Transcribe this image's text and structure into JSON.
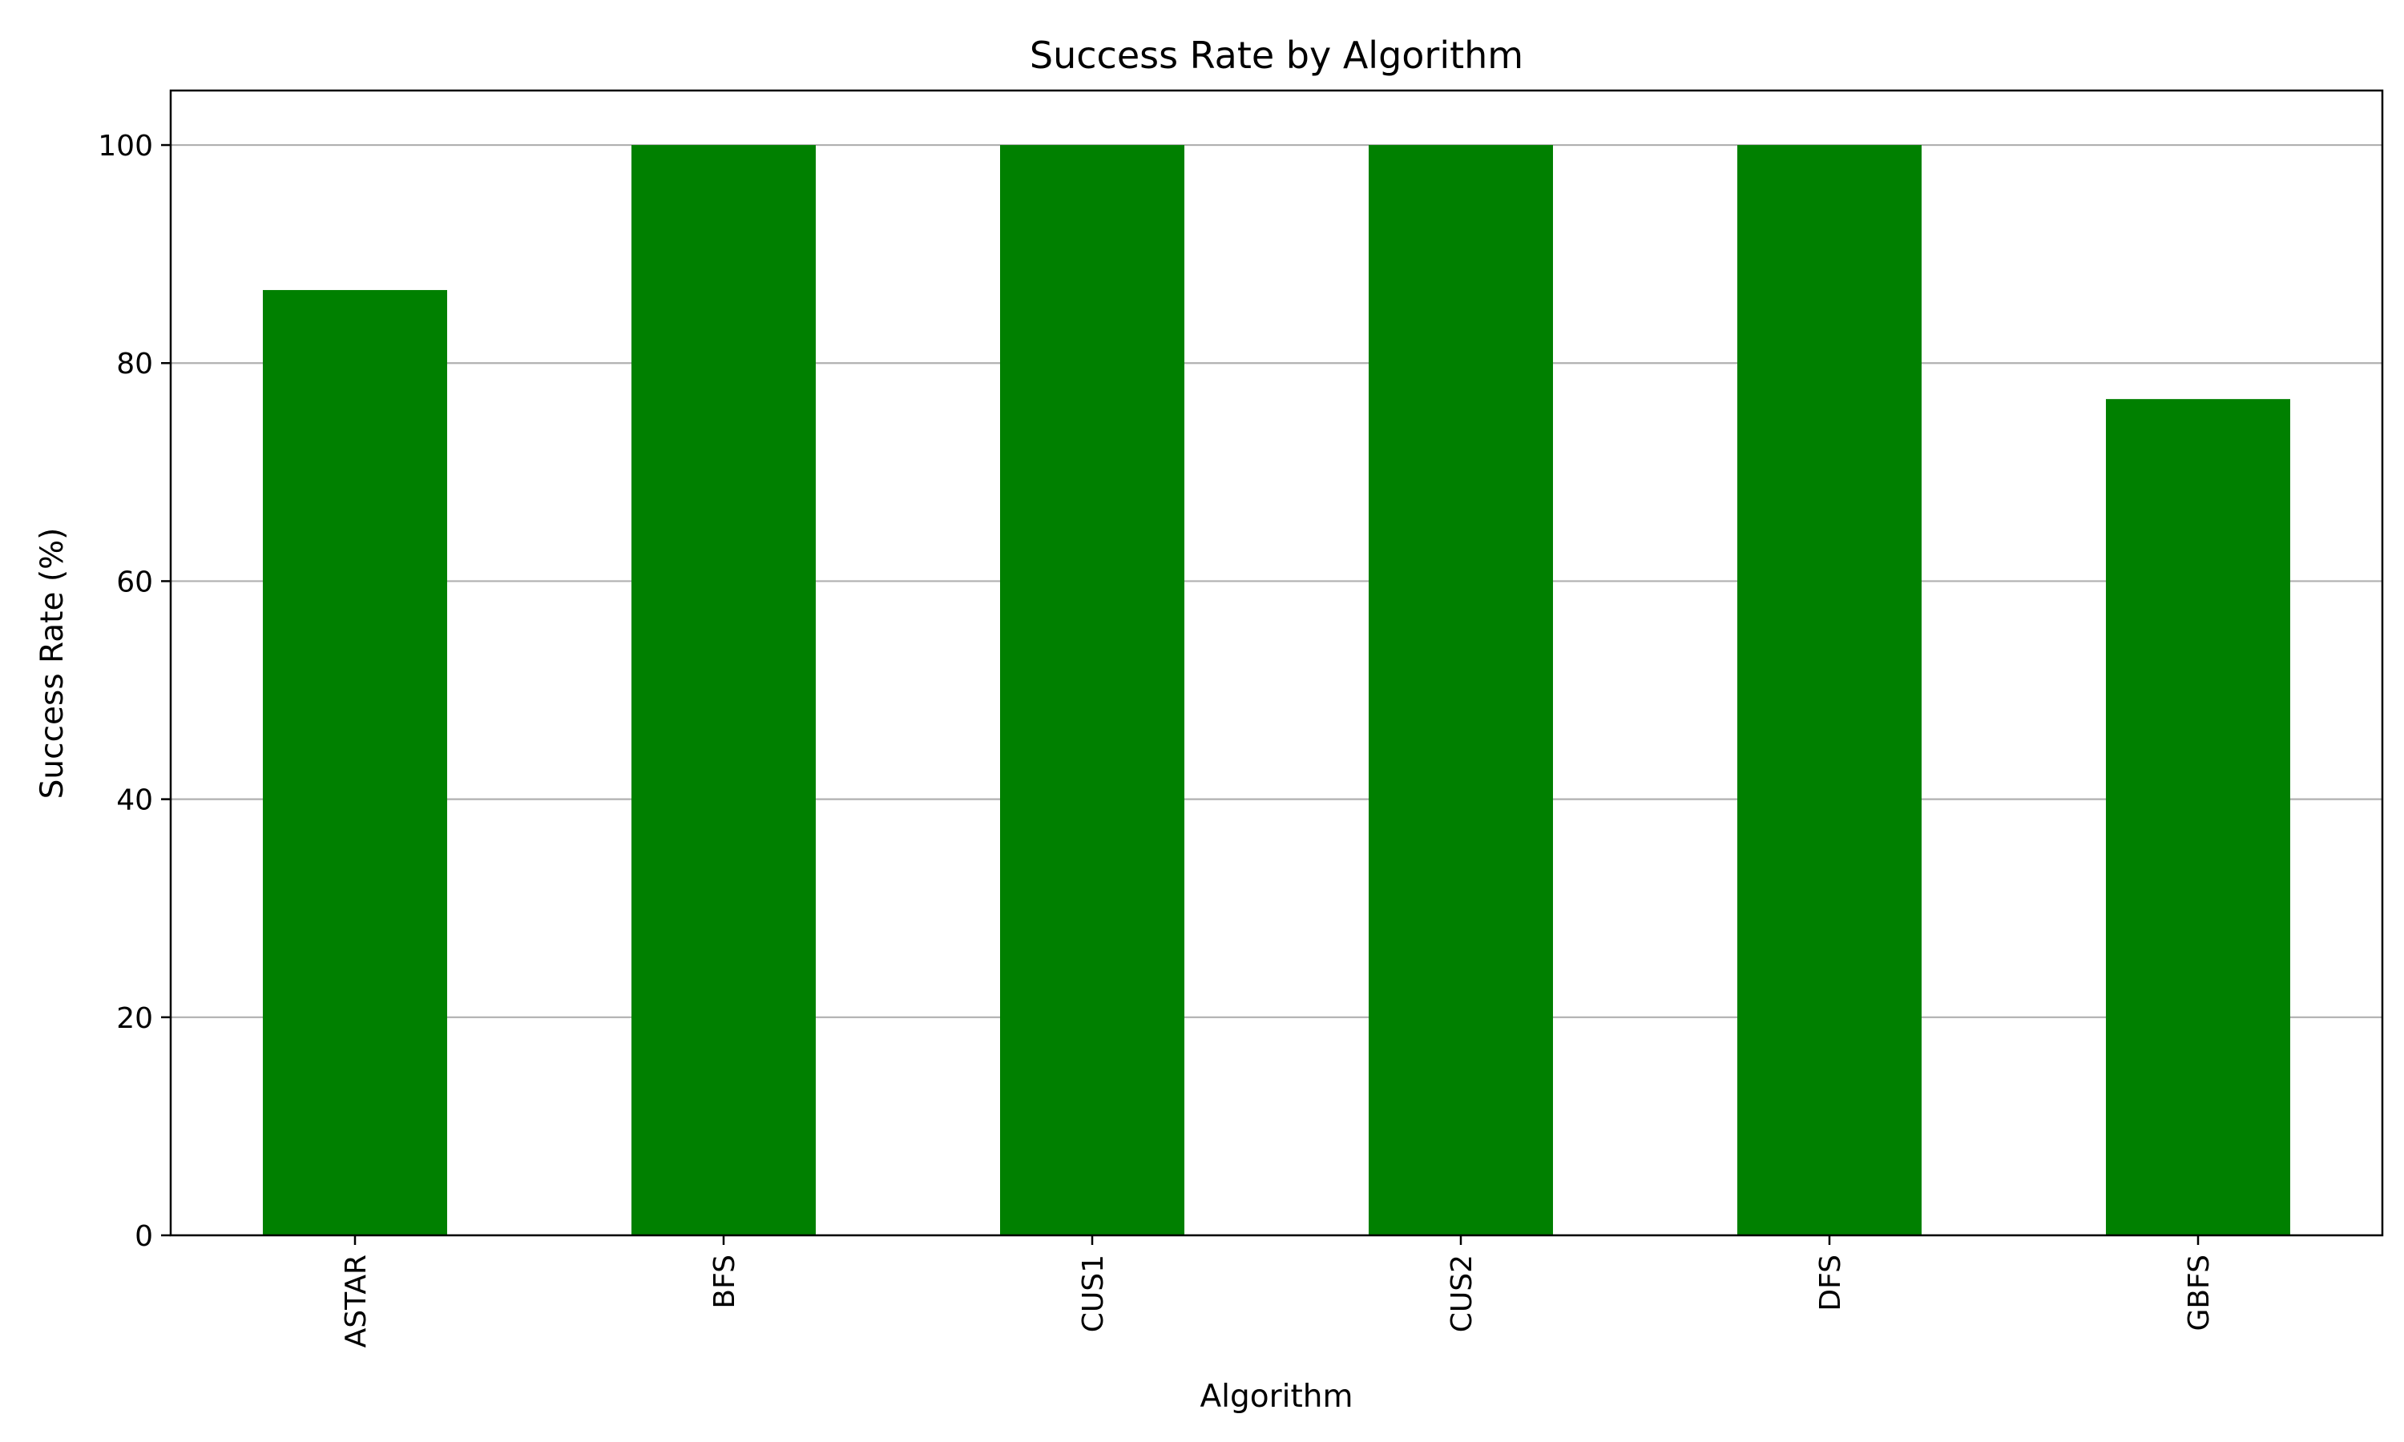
{
  "chart_data": {
    "type": "bar",
    "title": "Success Rate by Algorithm",
    "xlabel": "Algorithm",
    "ylabel": "Success Rate (%)",
    "categories": [
      "ASTAR",
      "BFS",
      "CUS1",
      "CUS2",
      "DFS",
      "GBFS"
    ],
    "values": [
      86.7,
      100,
      100,
      100,
      100,
      76.7
    ],
    "ylim": [
      0,
      105
    ],
    "yticks": [
      0,
      20,
      40,
      60,
      80,
      100
    ],
    "grid": "y",
    "bar_color": "#008000",
    "grid_color": "#b0b0b0",
    "xtick_rotation": "vertical"
  }
}
